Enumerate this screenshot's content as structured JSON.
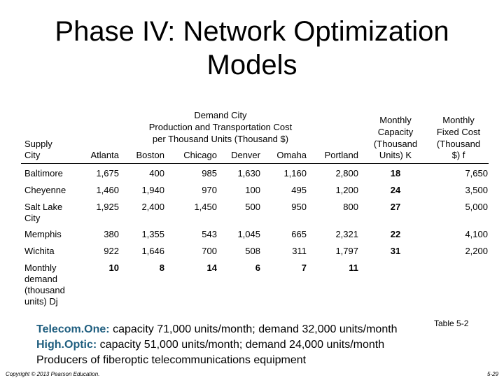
{
  "slide": {
    "title_line1": "Phase IV: Network Optimization",
    "title_line2": "Models"
  },
  "table": {
    "supply_header_line1": "Supply",
    "supply_header_line2": "City",
    "group_header_line1": "Demand City",
    "group_header_line2": "Production and Transportation Cost",
    "group_header_line3": "per Thousand Units (Thousand $)",
    "demand_cities": [
      "Atlanta",
      "Boston",
      "Chicago",
      "Denver",
      "Omaha",
      "Portland"
    ],
    "capacity_header": [
      "Monthly",
      "Capacity",
      "(Thousand",
      "Units) K"
    ],
    "fixed_cost_header": [
      "Monthly",
      "Fixed Cost",
      "(Thousand",
      "$) f"
    ],
    "rows": [
      {
        "city_line1": "Baltimore",
        "city_line2": "",
        "costs": [
          "1,675",
          "400",
          "985",
          "1,630",
          "1,160",
          "2,800"
        ],
        "capacity": "18",
        "fixed": "7,650"
      },
      {
        "city_line1": "Cheyenne",
        "city_line2": "",
        "costs": [
          "1,460",
          "1,940",
          "970",
          "100",
          "495",
          "1,200"
        ],
        "capacity": "24",
        "fixed": "3,500"
      },
      {
        "city_line1": "Salt Lake",
        "city_line2": "City",
        "costs": [
          "1,925",
          "2,400",
          "1,450",
          "500",
          "950",
          "800"
        ],
        "capacity": "27",
        "fixed": "5,000"
      },
      {
        "city_line1": "Memphis",
        "city_line2": "",
        "costs": [
          "380",
          "1,355",
          "543",
          "1,045",
          "665",
          "2,321"
        ],
        "capacity": "22",
        "fixed": "4,100"
      },
      {
        "city_line1": "Wichita",
        "city_line2": "",
        "costs": [
          "922",
          "1,646",
          "700",
          "508",
          "311",
          "1,797"
        ],
        "capacity": "31",
        "fixed": "2,200"
      }
    ],
    "demand_label": [
      "Monthly",
      "demand",
      "(thousand",
      "units) Dj"
    ],
    "demand_values": [
      "10",
      "8",
      "14",
      "6",
      "7",
      "11"
    ]
  },
  "notes": {
    "line1_company": "Telecom.One:",
    "line1_text": " capacity 71,000 units/month; demand 32,000 units/month",
    "table_ref": "Table 5-2",
    "line2_company": "High.Optic:",
    "line2_text": " capacity  51,000 units/month; demand 24,000 units/month",
    "line3": "Producers of fiberoptic telecommunications equipment"
  },
  "footer": {
    "copyright": "Copyright © 2013 Pearson Education.",
    "page": "5-29"
  },
  "colors": {
    "company_name": "#1f5e7f"
  }
}
